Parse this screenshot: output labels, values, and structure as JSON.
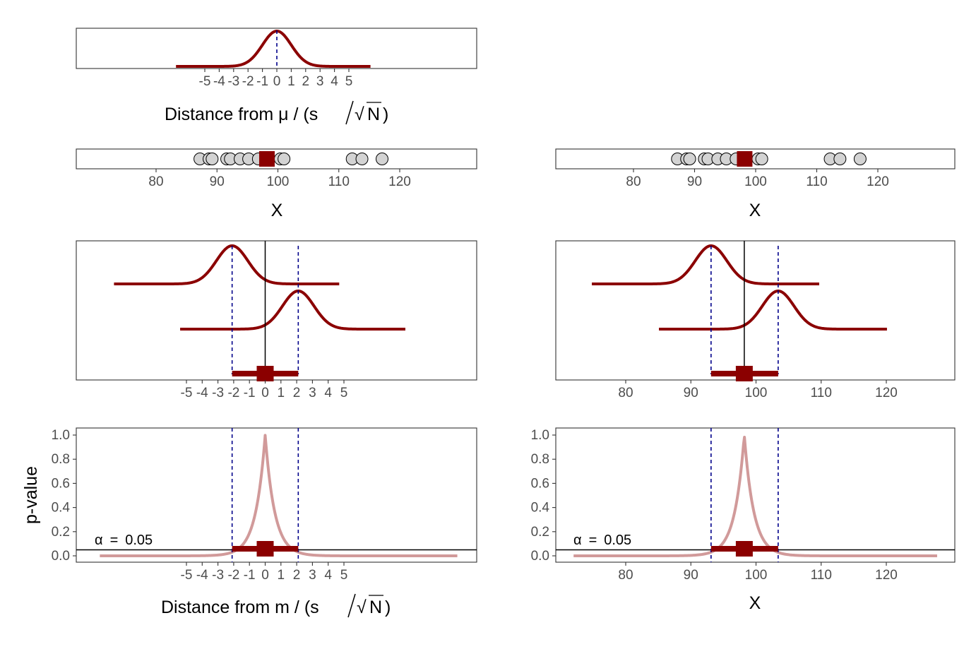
{
  "colors": {
    "dist": "#8B0000",
    "pcurve": "#D19A9A",
    "point": "#D3D3D3",
    "dashed": "#00008B",
    "frame": "#333333",
    "ticktext": "#4d4d4d"
  },
  "labels": {
    "top_xtitle_a": "Distance from μ / (s",
    "top_xtitle_b": "N",
    "top_xtitle_c": ")",
    "bottom_xtitle_a": "Distance from m / (s",
    "bottom_xtitle_b": "N",
    "bottom_xtitle_c": ")",
    "x": "X",
    "pvalue": "p-value",
    "alpha_sym": "α",
    "alpha_eq": "=",
    "alpha_val": "0.05",
    "sqrt_glyph": "√"
  },
  "chart_data": [
    {
      "panel": "top-standardized-distribution",
      "type": "line",
      "x_ticks": [
        -5,
        -4,
        -3,
        -2,
        -1,
        0,
        1,
        2,
        3,
        4,
        5
      ],
      "xlim": [
        -10.5,
        13.5
      ],
      "curve": {
        "center": 0,
        "sd": 1,
        "range": [
          -7,
          6.5
        ]
      },
      "ref_line_x": 0
    },
    {
      "panel": "sample-points-left",
      "type": "scatter",
      "x_ticks": [
        80,
        90,
        100,
        110,
        120
      ],
      "xlim": [
        67,
        133
      ],
      "points": [
        87.2,
        88.7,
        89.2,
        91.6,
        92.2,
        93.8,
        95.2,
        96.8,
        100.4,
        101.0,
        112.2,
        113.8,
        117.1
      ],
      "mean": 98.2
    },
    {
      "panel": "sample-points-right",
      "type": "scatter",
      "x_ticks": [
        80,
        90,
        100,
        110,
        120
      ],
      "xlim": [
        67,
        133
      ],
      "points": [
        87.2,
        88.7,
        89.2,
        91.6,
        92.2,
        93.8,
        95.2,
        96.8,
        100.4,
        101.0,
        112.2,
        113.8,
        117.1
      ],
      "mean": 98.2
    },
    {
      "panel": "ci-distributions-left",
      "type": "line",
      "x_ticks": [
        -5,
        -4,
        -3,
        -2,
        -1,
        0,
        1,
        2,
        3,
        4,
        5
      ],
      "xlim": [
        -11.7,
        13.1
      ],
      "center_line": 0,
      "ci": [
        -2.1,
        2.1
      ],
      "curves": [
        {
          "center": -2.1,
          "range": [
            -9.6,
            4.7
          ]
        },
        {
          "center": 2.1,
          "range": [
            -5.4,
            8.9
          ]
        }
      ]
    },
    {
      "panel": "ci-distributions-right",
      "type": "line",
      "x_ticks": [
        80,
        90,
        100,
        110,
        120
      ],
      "xlim": [
        69,
        130.5
      ],
      "center_line": 98.2,
      "ci": [
        93.1,
        103.4
      ],
      "curves": [
        {
          "center": 93.1,
          "range": [
            74.8,
            109.7
          ]
        },
        {
          "center": 103.4,
          "range": [
            85.1,
            120.1
          ]
        }
      ]
    },
    {
      "panel": "pvalue-left",
      "type": "line",
      "x_ticks": [
        -5,
        -4,
        -3,
        -2,
        -1,
        0,
        1,
        2,
        3,
        4,
        5
      ],
      "y_ticks": [
        "0.0",
        "0.2",
        "0.4",
        "0.6",
        "0.8",
        "1.0"
      ],
      "xlim": [
        -11.7,
        13.1
      ],
      "ylim": [
        -0.05,
        1.05
      ],
      "alpha": 0.05,
      "center": 0,
      "ci": [
        -2.1,
        2.1
      ],
      "curve_range": [
        -10.5,
        12.2
      ]
    },
    {
      "panel": "pvalue-right",
      "type": "line",
      "x_ticks": [
        80,
        90,
        100,
        110,
        120
      ],
      "y_ticks": [
        "0.0",
        "0.2",
        "0.4",
        "0.6",
        "0.8",
        "1.0"
      ],
      "xlim": [
        69,
        130.5
      ],
      "ylim": [
        -0.05,
        1.05
      ],
      "alpha": 0.05,
      "center": 98.2,
      "ci": [
        93.1,
        103.4
      ],
      "curve_range": [
        72,
        127.8
      ]
    }
  ]
}
